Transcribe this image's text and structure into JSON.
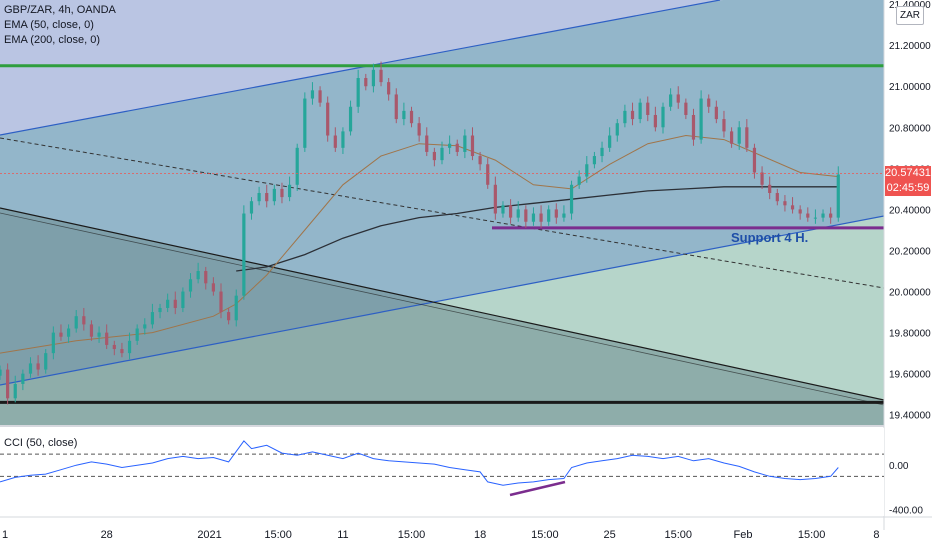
{
  "chart_data": {
    "type": "candlestick",
    "symbol": "GBP/ZAR",
    "interval": "4h",
    "source": "OANDA",
    "header_title": "GBP/ZAR, 4h, OANDA",
    "indicators": [
      "EMA (50, close, 0)",
      "EMA (200, close, 0)"
    ],
    "currency_button": "ZAR",
    "y_ticks": [
      "21.40000",
      "21.20000",
      "21.00000",
      "20.80000",
      "20.60000",
      "20.40000",
      "20.20000",
      "20.00000",
      "19.80000",
      "19.60000",
      "19.40000"
    ],
    "y_tick_values": [
      21.4,
      21.2,
      21.0,
      20.8,
      20.6,
      20.4,
      20.2,
      20.0,
      19.8,
      19.6,
      19.4
    ],
    "ylim": [
      19.35,
      21.42
    ],
    "last_price": "20.57431",
    "countdown": "02:45:59",
    "x_ticks": [
      {
        "label": "1",
        "x": 0
      },
      {
        "label": "28",
        "x": 28
      },
      {
        "label": "2021",
        "x": 55
      },
      {
        "label": "15:00",
        "x": 73
      },
      {
        "label": "11",
        "x": 90
      },
      {
        "label": "15:00",
        "x": 108
      },
      {
        "label": "18",
        "x": 126
      },
      {
        "label": "15:00",
        "x": 143
      },
      {
        "label": "25",
        "x": 160
      },
      {
        "label": "15:00",
        "x": 178
      },
      {
        "label": "Feb",
        "x": 195
      },
      {
        "label": "15:00",
        "x": 213
      },
      {
        "label": "8",
        "x": 230
      }
    ],
    "xlim": [
      0,
      232
    ],
    "close_series": [
      [
        0,
        19.62
      ],
      [
        2,
        19.48
      ],
      [
        4,
        19.55
      ],
      [
        6,
        19.6
      ],
      [
        8,
        19.65
      ],
      [
        10,
        19.62
      ],
      [
        12,
        19.7
      ],
      [
        14,
        19.8
      ],
      [
        16,
        19.78
      ],
      [
        18,
        19.82
      ],
      [
        20,
        19.88
      ],
      [
        22,
        19.84
      ],
      [
        24,
        19.78
      ],
      [
        26,
        19.8
      ],
      [
        28,
        19.74
      ],
      [
        30,
        19.72
      ],
      [
        32,
        19.7
      ],
      [
        34,
        19.76
      ],
      [
        36,
        19.82
      ],
      [
        38,
        19.84
      ],
      [
        40,
        19.9
      ],
      [
        42,
        19.92
      ],
      [
        44,
        19.96
      ],
      [
        46,
        19.92
      ],
      [
        48,
        20.0
      ],
      [
        50,
        20.06
      ],
      [
        52,
        20.1
      ],
      [
        54,
        20.04
      ],
      [
        56,
        20.0
      ],
      [
        58,
        19.9
      ],
      [
        60,
        19.86
      ],
      [
        62,
        19.98
      ],
      [
        64,
        20.38
      ],
      [
        66,
        20.44
      ],
      [
        68,
        20.48
      ],
      [
        70,
        20.44
      ],
      [
        72,
        20.5
      ],
      [
        74,
        20.46
      ],
      [
        76,
        20.52
      ],
      [
        78,
        20.7
      ],
      [
        80,
        20.94
      ],
      [
        82,
        20.98
      ],
      [
        84,
        20.92
      ],
      [
        86,
        20.76
      ],
      [
        88,
        20.7
      ],
      [
        90,
        20.78
      ],
      [
        92,
        20.9
      ],
      [
        94,
        21.04
      ],
      [
        96,
        21.0
      ],
      [
        98,
        21.08
      ],
      [
        100,
        21.02
      ],
      [
        102,
        20.96
      ],
      [
        104,
        20.84
      ],
      [
        106,
        20.88
      ],
      [
        108,
        20.82
      ],
      [
        110,
        20.76
      ],
      [
        112,
        20.68
      ],
      [
        114,
        20.64
      ],
      [
        116,
        20.7
      ],
      [
        118,
        20.72
      ],
      [
        120,
        20.68
      ],
      [
        122,
        20.76
      ],
      [
        124,
        20.66
      ],
      [
        126,
        20.62
      ],
      [
        128,
        20.52
      ],
      [
        130,
        20.38
      ],
      [
        132,
        20.42
      ],
      [
        134,
        20.36
      ],
      [
        136,
        20.4
      ],
      [
        138,
        20.34
      ],
      [
        140,
        20.38
      ],
      [
        142,
        20.34
      ],
      [
        144,
        20.4
      ],
      [
        146,
        20.36
      ],
      [
        148,
        20.38
      ],
      [
        150,
        20.52
      ],
      [
        152,
        20.56
      ],
      [
        154,
        20.62
      ],
      [
        156,
        20.66
      ],
      [
        158,
        20.7
      ],
      [
        160,
        20.76
      ],
      [
        162,
        20.82
      ],
      [
        164,
        20.88
      ],
      [
        166,
        20.84
      ],
      [
        168,
        20.92
      ],
      [
        170,
        20.86
      ],
      [
        172,
        20.8
      ],
      [
        174,
        20.9
      ],
      [
        176,
        20.96
      ],
      [
        178,
        20.92
      ],
      [
        180,
        20.86
      ],
      [
        182,
        20.74
      ],
      [
        184,
        20.94
      ],
      [
        186,
        20.9
      ],
      [
        188,
        20.84
      ],
      [
        190,
        20.78
      ],
      [
        192,
        20.72
      ],
      [
        194,
        20.8
      ],
      [
        196,
        20.7
      ],
      [
        198,
        20.58
      ],
      [
        200,
        20.52
      ],
      [
        202,
        20.48
      ],
      [
        204,
        20.44
      ],
      [
        206,
        20.42
      ],
      [
        208,
        20.4
      ],
      [
        210,
        20.38
      ],
      [
        212,
        20.36
      ],
      [
        214,
        20.36
      ],
      [
        216,
        20.38
      ],
      [
        218,
        20.36
      ],
      [
        220,
        20.57
      ]
    ],
    "ema50": [
      [
        0,
        19.7
      ],
      [
        20,
        19.76
      ],
      [
        40,
        19.8
      ],
      [
        56,
        19.88
      ],
      [
        62,
        19.94
      ],
      [
        70,
        20.08
      ],
      [
        80,
        20.3
      ],
      [
        90,
        20.52
      ],
      [
        100,
        20.66
      ],
      [
        110,
        20.72
      ],
      [
        120,
        20.71
      ],
      [
        130,
        20.64
      ],
      [
        140,
        20.52
      ],
      [
        150,
        20.5
      ],
      [
        160,
        20.62
      ],
      [
        170,
        20.72
      ],
      [
        180,
        20.76
      ],
      [
        190,
        20.74
      ],
      [
        200,
        20.66
      ],
      [
        210,
        20.58
      ],
      [
        220,
        20.56
      ]
    ],
    "ema200": [
      [
        62,
        20.1
      ],
      [
        70,
        20.12
      ],
      [
        80,
        20.18
      ],
      [
        90,
        20.26
      ],
      [
        100,
        20.32
      ],
      [
        110,
        20.36
      ],
      [
        120,
        20.38
      ],
      [
        130,
        20.41
      ],
      [
        140,
        20.43
      ],
      [
        150,
        20.45
      ],
      [
        160,
        20.47
      ],
      [
        170,
        20.49
      ],
      [
        180,
        20.5
      ],
      [
        190,
        20.51
      ],
      [
        200,
        20.51
      ],
      [
        210,
        20.51
      ],
      [
        220,
        20.51
      ]
    ],
    "annotation": "Support 4 H.",
    "support_level": 20.31,
    "resistance_level": 21.1,
    "bottom_level": 19.46,
    "cci": {
      "label": "CCI (50, close)",
      "y_ticks": [
        "0.00",
        "-400.00"
      ],
      "y_tick_values": [
        0,
        -400
      ],
      "ylim": [
        -440,
        300
      ],
      "upper_band": 100,
      "lower_band": -100,
      "series": [
        [
          0,
          -150
        ],
        [
          4,
          -110
        ],
        [
          8,
          -90
        ],
        [
          12,
          -80
        ],
        [
          16,
          -40
        ],
        [
          20,
          0
        ],
        [
          24,
          30
        ],
        [
          28,
          10
        ],
        [
          32,
          -20
        ],
        [
          36,
          0
        ],
        [
          40,
          20
        ],
        [
          44,
          60
        ],
        [
          48,
          80
        ],
        [
          52,
          60
        ],
        [
          56,
          70
        ],
        [
          60,
          30
        ],
        [
          64,
          220
        ],
        [
          66,
          150
        ],
        [
          70,
          180
        ],
        [
          74,
          110
        ],
        [
          78,
          90
        ],
        [
          82,
          120
        ],
        [
          86,
          90
        ],
        [
          90,
          60
        ],
        [
          94,
          110
        ],
        [
          98,
          60
        ],
        [
          102,
          40
        ],
        [
          106,
          30
        ],
        [
          110,
          20
        ],
        [
          114,
          10
        ],
        [
          118,
          -20
        ],
        [
          122,
          -40
        ],
        [
          126,
          -60
        ],
        [
          128,
          -150
        ],
        [
          132,
          -180
        ],
        [
          136,
          -160
        ],
        [
          140,
          -150
        ],
        [
          144,
          -130
        ],
        [
          148,
          -120
        ],
        [
          150,
          -20
        ],
        [
          154,
          20
        ],
        [
          158,
          40
        ],
        [
          162,
          60
        ],
        [
          166,
          90
        ],
        [
          170,
          80
        ],
        [
          174,
          60
        ],
        [
          178,
          80
        ],
        [
          182,
          40
        ],
        [
          186,
          60
        ],
        [
          190,
          20
        ],
        [
          194,
          -10
        ],
        [
          198,
          -60
        ],
        [
          202,
          -100
        ],
        [
          206,
          -120
        ],
        [
          210,
          -130
        ],
        [
          214,
          -120
        ],
        [
          218,
          -100
        ],
        [
          220,
          -20
        ]
      ]
    }
  }
}
